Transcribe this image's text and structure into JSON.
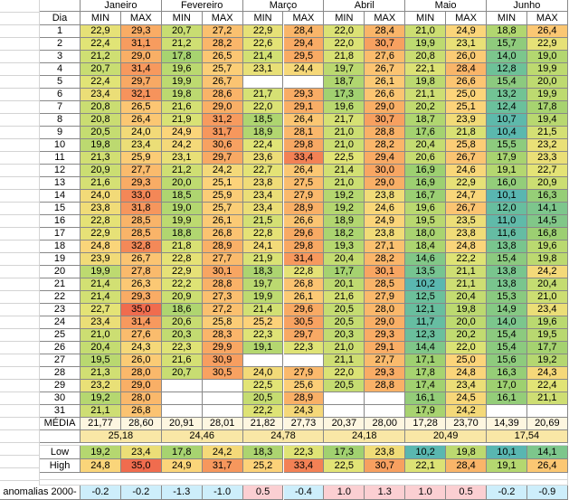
{
  "header": {
    "dia": "Dia",
    "months": [
      "Janeiro",
      "Fevereiro",
      "Março",
      "Abril",
      "Maio",
      "Junho"
    ],
    "min": "MIN",
    "max": "MAX"
  },
  "rows": [
    {
      "dia": "1",
      "cells": [
        "22,9",
        "29,3",
        "20,7",
        "27,2",
        "22,9",
        "28,4",
        "22,0",
        "28,4",
        "21,0",
        "24,9",
        "18,8",
        "26,4"
      ]
    },
    {
      "dia": "2",
      "cells": [
        "22,4",
        "31,1",
        "21,2",
        "28,2",
        "22,6",
        "29,4",
        "22,0",
        "30,7",
        "19,9",
        "23,1",
        "15,7",
        "22,9"
      ]
    },
    {
      "dia": "3",
      "cells": [
        "21,2",
        "29,0",
        "17,8",
        "26,5",
        "21,4",
        "29,5",
        "21,8",
        "27,6",
        "20,8",
        "26,0",
        "14,0",
        "19,0"
      ]
    },
    {
      "dia": "4",
      "cells": [
        "20,7",
        "31,4",
        "19,6",
        "25,7",
        "23,1",
        "24,4",
        "19,7",
        "26,7",
        "22,1",
        "28,4",
        "12,8",
        "19,9"
      ]
    },
    {
      "dia": "5",
      "cells": [
        "22,4",
        "29,7",
        "19,9",
        "26,7",
        null,
        null,
        "18,7",
        "26,1",
        "19,8",
        "26,6",
        "15,4",
        "20,0"
      ]
    },
    {
      "dia": "6",
      "cells": [
        "23,4",
        "32,1",
        "19,8",
        "28,6",
        "21,7",
        "29,3",
        "17,3",
        "26,6",
        "21,1",
        "25,0",
        "13,2",
        "19,9"
      ]
    },
    {
      "dia": "7",
      "cells": [
        "20,8",
        "26,5",
        "21,6",
        "29,0",
        "22,0",
        "29,1",
        "19,6",
        "29,0",
        "20,2",
        "25,1",
        "12,4",
        "17,8"
      ]
    },
    {
      "dia": "8",
      "cells": [
        "20,8",
        "26,4",
        "21,9",
        "31,2",
        "18,5",
        "26,4",
        "21,7",
        "30,7",
        "18,7",
        "23,9",
        "10,7",
        "19,4"
      ]
    },
    {
      "dia": "9",
      "cells": [
        "20,5",
        "24,0",
        "24,9",
        "31,7",
        "18,9",
        "28,1",
        "21,0",
        "28,8",
        "17,6",
        "21,8",
        "10,4",
        "21,5"
      ]
    },
    {
      "dia": "10",
      "cells": [
        "19,8",
        "23,4",
        "24,2",
        "30,6",
        "22,4",
        "29,8",
        "21,0",
        "28,2",
        "20,4",
        "25,8",
        "15,5",
        "23,2"
      ]
    },
    {
      "dia": "11",
      "cells": [
        "21,3",
        "25,9",
        "23,1",
        "29,7",
        "23,6",
        "33,4",
        "22,5",
        "29,4",
        "20,6",
        "26,7",
        "17,9",
        "23,3"
      ]
    },
    {
      "dia": "12",
      "cells": [
        "20,9",
        "27,7",
        "21,2",
        "24,2",
        "22,7",
        "26,4",
        "21,4",
        "30,0",
        "16,9",
        "24,6",
        "19,1",
        "22,7"
      ]
    },
    {
      "dia": "13",
      "cells": [
        "21,6",
        "29,3",
        "20,0",
        "25,1",
        "23,8",
        "27,5",
        "21,0",
        "29,0",
        "16,9",
        "22,9",
        "16,0",
        "20,9"
      ]
    },
    {
      "dia": "14",
      "cells": [
        "24,0",
        "33,0",
        "18,5",
        "25,9",
        "23,4",
        "27,9",
        "19,2",
        "23,8",
        "16,7",
        "24,7",
        "10,1",
        "16,3"
      ]
    },
    {
      "dia": "15",
      "cells": [
        "23,8",
        "31,8",
        "19,0",
        "25,7",
        "23,4",
        "28,9",
        "19,2",
        "24,6",
        "19,6",
        "26,7",
        "12,0",
        "14,1"
      ]
    },
    {
      "dia": "16",
      "cells": [
        "22,8",
        "28,5",
        "19,9",
        "26,1",
        "21,5",
        "26,6",
        "18,9",
        "24,9",
        "19,5",
        "23,5",
        "11,0",
        "14,5"
      ]
    },
    {
      "dia": "17",
      "cells": [
        "22,9",
        "28,5",
        "18,8",
        "26,8",
        "22,8",
        "29,6",
        "18,2",
        "23,8",
        "18,0",
        "23,8",
        "11,6",
        "16,8"
      ]
    },
    {
      "dia": "18",
      "cells": [
        "24,8",
        "32,8",
        "21,8",
        "28,9",
        "24,1",
        "29,8",
        "19,3",
        "27,1",
        "18,4",
        "24,8",
        "13,8",
        "19,6"
      ]
    },
    {
      "dia": "19",
      "cells": [
        "23,9",
        "26,7",
        "22,8",
        "27,7",
        "21,9",
        "31,4",
        "20,4",
        "28,2",
        "14,6",
        "22,2",
        "15,4",
        "19,8"
      ]
    },
    {
      "dia": "20",
      "cells": [
        "19,9",
        "27,8",
        "22,9",
        "30,1",
        "18,3",
        "22,8",
        "17,7",
        "30,1",
        "13,5",
        "21,1",
        "13,8",
        "24,2"
      ]
    },
    {
      "dia": "21",
      "cells": [
        "21,4",
        "26,3",
        "22,2",
        "28,8",
        "19,7",
        "26,8",
        "20,1",
        "28,5",
        "10,2",
        "21,1",
        "13,8",
        "20,4"
      ]
    },
    {
      "dia": "22",
      "cells": [
        "21,4",
        "29,3",
        "20,9",
        "27,3",
        "19,9",
        "26,1",
        "21,6",
        "27,9",
        "12,5",
        "20,4",
        "15,3",
        "21,0"
      ]
    },
    {
      "dia": "23",
      "cells": [
        "22,7",
        "35,0",
        "18,6",
        "27,2",
        "21,4",
        "29,6",
        "20,5",
        "28,0",
        "12,1",
        "19,8",
        "14,9",
        "23,4"
      ]
    },
    {
      "dia": "24",
      "cells": [
        "23,4",
        "31,4",
        "20,6",
        "25,8",
        "25,2",
        "30,5",
        "20,5",
        "29,0",
        "11,7",
        "20,0",
        "14,0",
        "19,6"
      ]
    },
    {
      "dia": "25",
      "cells": [
        "21,0",
        "27,6",
        "20,3",
        "28,3",
        "22,3",
        "29,7",
        "20,3",
        "29,3",
        "12,3",
        "20,2",
        "15,4",
        "19,5"
      ]
    },
    {
      "dia": "26",
      "cells": [
        "20,4",
        "24,3",
        "22,3",
        "29,9",
        "19,1",
        "22,3",
        "21,0",
        "29,1",
        "14,4",
        "22,0",
        "15,4",
        "17,7"
      ]
    },
    {
      "dia": "27",
      "cells": [
        "19,5",
        "26,0",
        "21,6",
        "30,9",
        null,
        null,
        "21,1",
        "27,7",
        "17,1",
        "25,0",
        "15,6",
        "19,2"
      ]
    },
    {
      "dia": "28",
      "cells": [
        "21,3",
        "28,0",
        "20,7",
        "30,5",
        "24,0",
        "27,9",
        "22,0",
        "29,3",
        "17,8",
        "24,8",
        "16,3",
        "24,3"
      ]
    },
    {
      "dia": "29",
      "cells": [
        "23,2",
        "29,0",
        null,
        null,
        "22,5",
        "25,6",
        "20,5",
        "28,8",
        "17,4",
        "23,4",
        "17,0",
        "22,4"
      ]
    },
    {
      "dia": "30",
      "cells": [
        "19,2",
        "28,0",
        null,
        null,
        "20,5",
        "28,9",
        null,
        null,
        "16,1",
        "24,5",
        "16,1",
        "21,1"
      ]
    },
    {
      "dia": "31",
      "cells": [
        "21,1",
        "26,8",
        null,
        null,
        "22,2",
        "24,3",
        null,
        null,
        "17,9",
        "24,2",
        null,
        null
      ]
    }
  ],
  "media": {
    "label": "MÉDIA",
    "cells": [
      "21,77",
      "28,60",
      "20,91",
      "28,01",
      "21,82",
      "27,73",
      "20,37",
      "28,00",
      "17,28",
      "23,70",
      "14,39",
      "20,69"
    ]
  },
  "averages": [
    "25,18",
    "24,46",
    "24,78",
    "24,18",
    "20,49",
    "17,54"
  ],
  "low": {
    "label": "Low",
    "cells": [
      "19,2",
      "23,4",
      "17,8",
      "24,2",
      "18,3",
      "22,3",
      "17,3",
      "23,8",
      "10,2",
      "19,8",
      "10,1",
      "14,1"
    ]
  },
  "high": {
    "label": "High",
    "cells": [
      "24,8",
      "35,0",
      "24,9",
      "31,7",
      "25,2",
      "33,4",
      "22,5",
      "30,7",
      "22,1",
      "28,4",
      "19,1",
      "26,4"
    ]
  },
  "anomalias": {
    "label": "anomalias 2000-",
    "cells": [
      "-0.2",
      "-0.2",
      "-1.3",
      "-1.0",
      "0.5",
      "-0.4",
      "1.0",
      "1.3",
      "1.0",
      "0.5",
      "-0.2",
      "-0.9"
    ]
  }
}
